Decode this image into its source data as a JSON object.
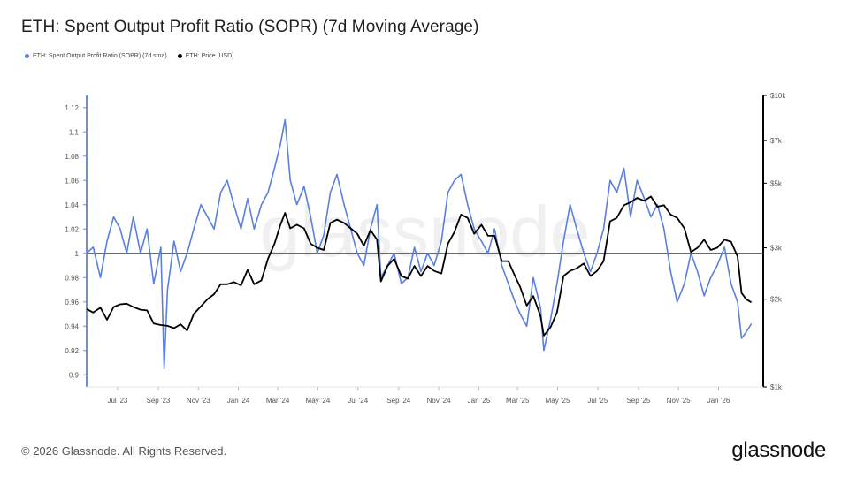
{
  "title": "ETH: Spent Output Profit Ratio (SOPR) (7d Moving Average)",
  "legend": [
    {
      "label": "ETH: Spent Output Profit Ratio (SOPR) (7d sma)",
      "color": "#5b7fde"
    },
    {
      "label": "ETH: Price [USD]",
      "color": "#000000"
    }
  ],
  "watermark": "glassnode",
  "footer": "© 2026 Glassnode. All Rights Reserved.",
  "logo": "glassnode",
  "chart_data": {
    "type": "line",
    "x_ticks": [
      "Jul '23",
      "Sep '23",
      "Nov '23",
      "Jan '24",
      "Mar '24",
      "May '24",
      "Jul '24",
      "Sep '24",
      "Nov '24",
      "Jan '25",
      "Mar '25",
      "May '25",
      "Jul '25",
      "Sep '25",
      "Nov '25",
      "Jan '26"
    ],
    "x_range": [
      "2023-05-15",
      "2026-03-10"
    ],
    "y_left": {
      "ticks": [
        0.9,
        0.92,
        0.94,
        0.96,
        0.98,
        1,
        1.02,
        1.04,
        1.06,
        1.08,
        1.1,
        1.12
      ],
      "range": [
        0.89,
        1.13
      ]
    },
    "y_right": {
      "ticks": [
        1000,
        2000,
        3000,
        5000,
        7000,
        10000
      ],
      "tick_labels": [
        "$1k",
        "$2k",
        "$3k",
        "$5k",
        "$7k",
        "$10k"
      ],
      "range": [
        1000,
        10000
      ],
      "scale": "log"
    },
    "reference_line": 1,
    "series": [
      {
        "name": "ETH: Spent Output Profit Ratio (SOPR) (7d sma)",
        "axis": "left",
        "color": "#5b7fde",
        "points": [
          [
            "2023-05-15",
            1.0
          ],
          [
            "2023-05-25",
            1.005
          ],
          [
            "2023-06-05",
            0.98
          ],
          [
            "2023-06-15",
            1.01
          ],
          [
            "2023-06-25",
            1.03
          ],
          [
            "2023-07-05",
            1.02
          ],
          [
            "2023-07-15",
            1.0
          ],
          [
            "2023-07-25",
            1.03
          ],
          [
            "2023-08-05",
            1.0
          ],
          [
            "2023-08-15",
            1.02
          ],
          [
            "2023-08-25",
            0.975
          ],
          [
            "2023-09-05",
            1.005
          ],
          [
            "2023-09-10",
            0.905
          ],
          [
            "2023-09-15",
            0.97
          ],
          [
            "2023-09-25",
            1.01
          ],
          [
            "2023-10-05",
            0.985
          ],
          [
            "2023-10-15",
            1.0
          ],
          [
            "2023-10-25",
            1.02
          ],
          [
            "2023-11-05",
            1.04
          ],
          [
            "2023-11-15",
            1.03
          ],
          [
            "2023-11-25",
            1.02
          ],
          [
            "2023-12-05",
            1.05
          ],
          [
            "2023-12-15",
            1.06
          ],
          [
            "2023-12-25",
            1.04
          ],
          [
            "2024-01-05",
            1.02
          ],
          [
            "2024-01-15",
            1.045
          ],
          [
            "2024-01-25",
            1.02
          ],
          [
            "2024-02-05",
            1.04
          ],
          [
            "2024-02-15",
            1.05
          ],
          [
            "2024-02-25",
            1.07
          ],
          [
            "2024-03-05",
            1.09
          ],
          [
            "2024-03-12",
            1.11
          ],
          [
            "2024-03-20",
            1.06
          ],
          [
            "2024-03-30",
            1.04
          ],
          [
            "2024-04-10",
            1.055
          ],
          [
            "2024-04-20",
            1.03
          ],
          [
            "2024-04-30",
            1.0
          ],
          [
            "2024-05-10",
            1.015
          ],
          [
            "2024-05-20",
            1.05
          ],
          [
            "2024-05-30",
            1.065
          ],
          [
            "2024-06-10",
            1.04
          ],
          [
            "2024-06-20",
            1.02
          ],
          [
            "2024-06-30",
            1.0
          ],
          [
            "2024-07-10",
            0.99
          ],
          [
            "2024-07-20",
            1.02
          ],
          [
            "2024-07-30",
            1.04
          ],
          [
            "2024-08-05",
            0.98
          ],
          [
            "2024-08-15",
            0.99
          ],
          [
            "2024-08-25",
            1.0
          ],
          [
            "2024-09-05",
            0.975
          ],
          [
            "2024-09-15",
            0.98
          ],
          [
            "2024-09-25",
            1.005
          ],
          [
            "2024-10-05",
            0.985
          ],
          [
            "2024-10-15",
            1.0
          ],
          [
            "2024-10-25",
            0.99
          ],
          [
            "2024-11-05",
            1.01
          ],
          [
            "2024-11-15",
            1.05
          ],
          [
            "2024-11-25",
            1.06
          ],
          [
            "2024-12-05",
            1.065
          ],
          [
            "2024-12-15",
            1.04
          ],
          [
            "2024-12-25",
            1.02
          ],
          [
            "2025-01-05",
            1.01
          ],
          [
            "2025-01-15",
            1.0
          ],
          [
            "2025-01-25",
            1.02
          ],
          [
            "2025-02-05",
            0.99
          ],
          [
            "2025-02-15",
            0.975
          ],
          [
            "2025-02-25",
            0.96
          ],
          [
            "2025-03-05",
            0.95
          ],
          [
            "2025-03-15",
            0.94
          ],
          [
            "2025-03-25",
            0.98
          ],
          [
            "2025-04-05",
            0.955
          ],
          [
            "2025-04-10",
            0.92
          ],
          [
            "2025-04-20",
            0.945
          ],
          [
            "2025-04-30",
            0.975
          ],
          [
            "2025-05-10",
            1.01
          ],
          [
            "2025-05-20",
            1.04
          ],
          [
            "2025-05-30",
            1.02
          ],
          [
            "2025-06-10",
            1.0
          ],
          [
            "2025-06-20",
            0.985
          ],
          [
            "2025-06-30",
            1.0
          ],
          [
            "2025-07-10",
            1.02
          ],
          [
            "2025-07-20",
            1.06
          ],
          [
            "2025-07-30",
            1.05
          ],
          [
            "2025-08-10",
            1.07
          ],
          [
            "2025-08-20",
            1.03
          ],
          [
            "2025-08-30",
            1.06
          ],
          [
            "2025-09-10",
            1.045
          ],
          [
            "2025-09-20",
            1.03
          ],
          [
            "2025-09-30",
            1.04
          ],
          [
            "2025-10-10",
            1.02
          ],
          [
            "2025-10-20",
            0.985
          ],
          [
            "2025-10-30",
            0.96
          ],
          [
            "2025-11-10",
            0.975
          ],
          [
            "2025-11-20",
            1.0
          ],
          [
            "2025-11-30",
            0.985
          ],
          [
            "2025-12-10",
            0.965
          ],
          [
            "2025-12-20",
            0.98
          ],
          [
            "2025-12-30",
            0.99
          ],
          [
            "2026-01-10",
            1.005
          ],
          [
            "2026-01-20",
            0.975
          ],
          [
            "2026-01-30",
            0.96
          ],
          [
            "2026-02-05",
            0.93
          ],
          [
            "2026-02-12",
            0.935
          ],
          [
            "2026-02-20",
            0.942
          ]
        ]
      },
      {
        "name": "ETH: Price [USD]",
        "axis": "right",
        "color": "#000000",
        "points": [
          [
            "2023-05-15",
            1850
          ],
          [
            "2023-05-25",
            1800
          ],
          [
            "2023-06-05",
            1870
          ],
          [
            "2023-06-15",
            1700
          ],
          [
            "2023-06-25",
            1880
          ],
          [
            "2023-07-05",
            1920
          ],
          [
            "2023-07-15",
            1930
          ],
          [
            "2023-07-25",
            1880
          ],
          [
            "2023-08-05",
            1840
          ],
          [
            "2023-08-15",
            1830
          ],
          [
            "2023-08-25",
            1650
          ],
          [
            "2023-09-05",
            1630
          ],
          [
            "2023-09-15",
            1620
          ],
          [
            "2023-09-25",
            1590
          ],
          [
            "2023-10-05",
            1640
          ],
          [
            "2023-10-15",
            1560
          ],
          [
            "2023-10-25",
            1780
          ],
          [
            "2023-11-05",
            1890
          ],
          [
            "2023-11-15",
            2000
          ],
          [
            "2023-11-25",
            2080
          ],
          [
            "2023-12-05",
            2250
          ],
          [
            "2023-12-15",
            2250
          ],
          [
            "2023-12-25",
            2290
          ],
          [
            "2024-01-05",
            2230
          ],
          [
            "2024-01-15",
            2520
          ],
          [
            "2024-01-25",
            2250
          ],
          [
            "2024-02-05",
            2320
          ],
          [
            "2024-02-15",
            2750
          ],
          [
            "2024-02-25",
            3100
          ],
          [
            "2024-03-05",
            3600
          ],
          [
            "2024-03-12",
            3950
          ],
          [
            "2024-03-20",
            3500
          ],
          [
            "2024-03-30",
            3600
          ],
          [
            "2024-04-10",
            3500
          ],
          [
            "2024-04-20",
            3100
          ],
          [
            "2024-04-30",
            3000
          ],
          [
            "2024-05-10",
            2950
          ],
          [
            "2024-05-20",
            3650
          ],
          [
            "2024-05-30",
            3750
          ],
          [
            "2024-06-10",
            3650
          ],
          [
            "2024-06-20",
            3500
          ],
          [
            "2024-06-30",
            3350
          ],
          [
            "2024-07-10",
            3050
          ],
          [
            "2024-07-20",
            3450
          ],
          [
            "2024-07-30",
            3200
          ],
          [
            "2024-08-05",
            2300
          ],
          [
            "2024-08-15",
            2600
          ],
          [
            "2024-08-25",
            2750
          ],
          [
            "2024-09-05",
            2400
          ],
          [
            "2024-09-15",
            2350
          ],
          [
            "2024-09-25",
            2600
          ],
          [
            "2024-10-05",
            2400
          ],
          [
            "2024-10-15",
            2600
          ],
          [
            "2024-10-25",
            2500
          ],
          [
            "2024-11-05",
            2450
          ],
          [
            "2024-11-15",
            3100
          ],
          [
            "2024-11-25",
            3400
          ],
          [
            "2024-12-05",
            3900
          ],
          [
            "2024-12-15",
            3800
          ],
          [
            "2024-12-25",
            3350
          ],
          [
            "2025-01-05",
            3600
          ],
          [
            "2025-01-15",
            3300
          ],
          [
            "2025-01-25",
            3300
          ],
          [
            "2025-02-05",
            2700
          ],
          [
            "2025-02-15",
            2700
          ],
          [
            "2025-02-25",
            2400
          ],
          [
            "2025-03-05",
            2200
          ],
          [
            "2025-03-15",
            1900
          ],
          [
            "2025-03-25",
            2050
          ],
          [
            "2025-04-05",
            1750
          ],
          [
            "2025-04-10",
            1500
          ],
          [
            "2025-04-20",
            1600
          ],
          [
            "2025-04-30",
            1800
          ],
          [
            "2025-05-10",
            2400
          ],
          [
            "2025-05-20",
            2500
          ],
          [
            "2025-05-30",
            2550
          ],
          [
            "2025-06-10",
            2650
          ],
          [
            "2025-06-20",
            2400
          ],
          [
            "2025-06-30",
            2500
          ],
          [
            "2025-07-10",
            2700
          ],
          [
            "2025-07-20",
            3700
          ],
          [
            "2025-07-30",
            3800
          ],
          [
            "2025-08-10",
            4200
          ],
          [
            "2025-08-20",
            4300
          ],
          [
            "2025-08-30",
            4450
          ],
          [
            "2025-09-10",
            4350
          ],
          [
            "2025-09-20",
            4500
          ],
          [
            "2025-09-30",
            4150
          ],
          [
            "2025-10-10",
            4200
          ],
          [
            "2025-10-20",
            3900
          ],
          [
            "2025-10-30",
            3800
          ],
          [
            "2025-11-10",
            3500
          ],
          [
            "2025-11-20",
            2900
          ],
          [
            "2025-11-30",
            3000
          ],
          [
            "2025-12-10",
            3200
          ],
          [
            "2025-12-20",
            2950
          ],
          [
            "2025-12-30",
            3000
          ],
          [
            "2026-01-10",
            3200
          ],
          [
            "2026-01-20",
            3150
          ],
          [
            "2026-01-30",
            2800
          ],
          [
            "2026-02-05",
            2100
          ],
          [
            "2026-02-12",
            2000
          ],
          [
            "2026-02-20",
            1950
          ]
        ]
      }
    ]
  }
}
